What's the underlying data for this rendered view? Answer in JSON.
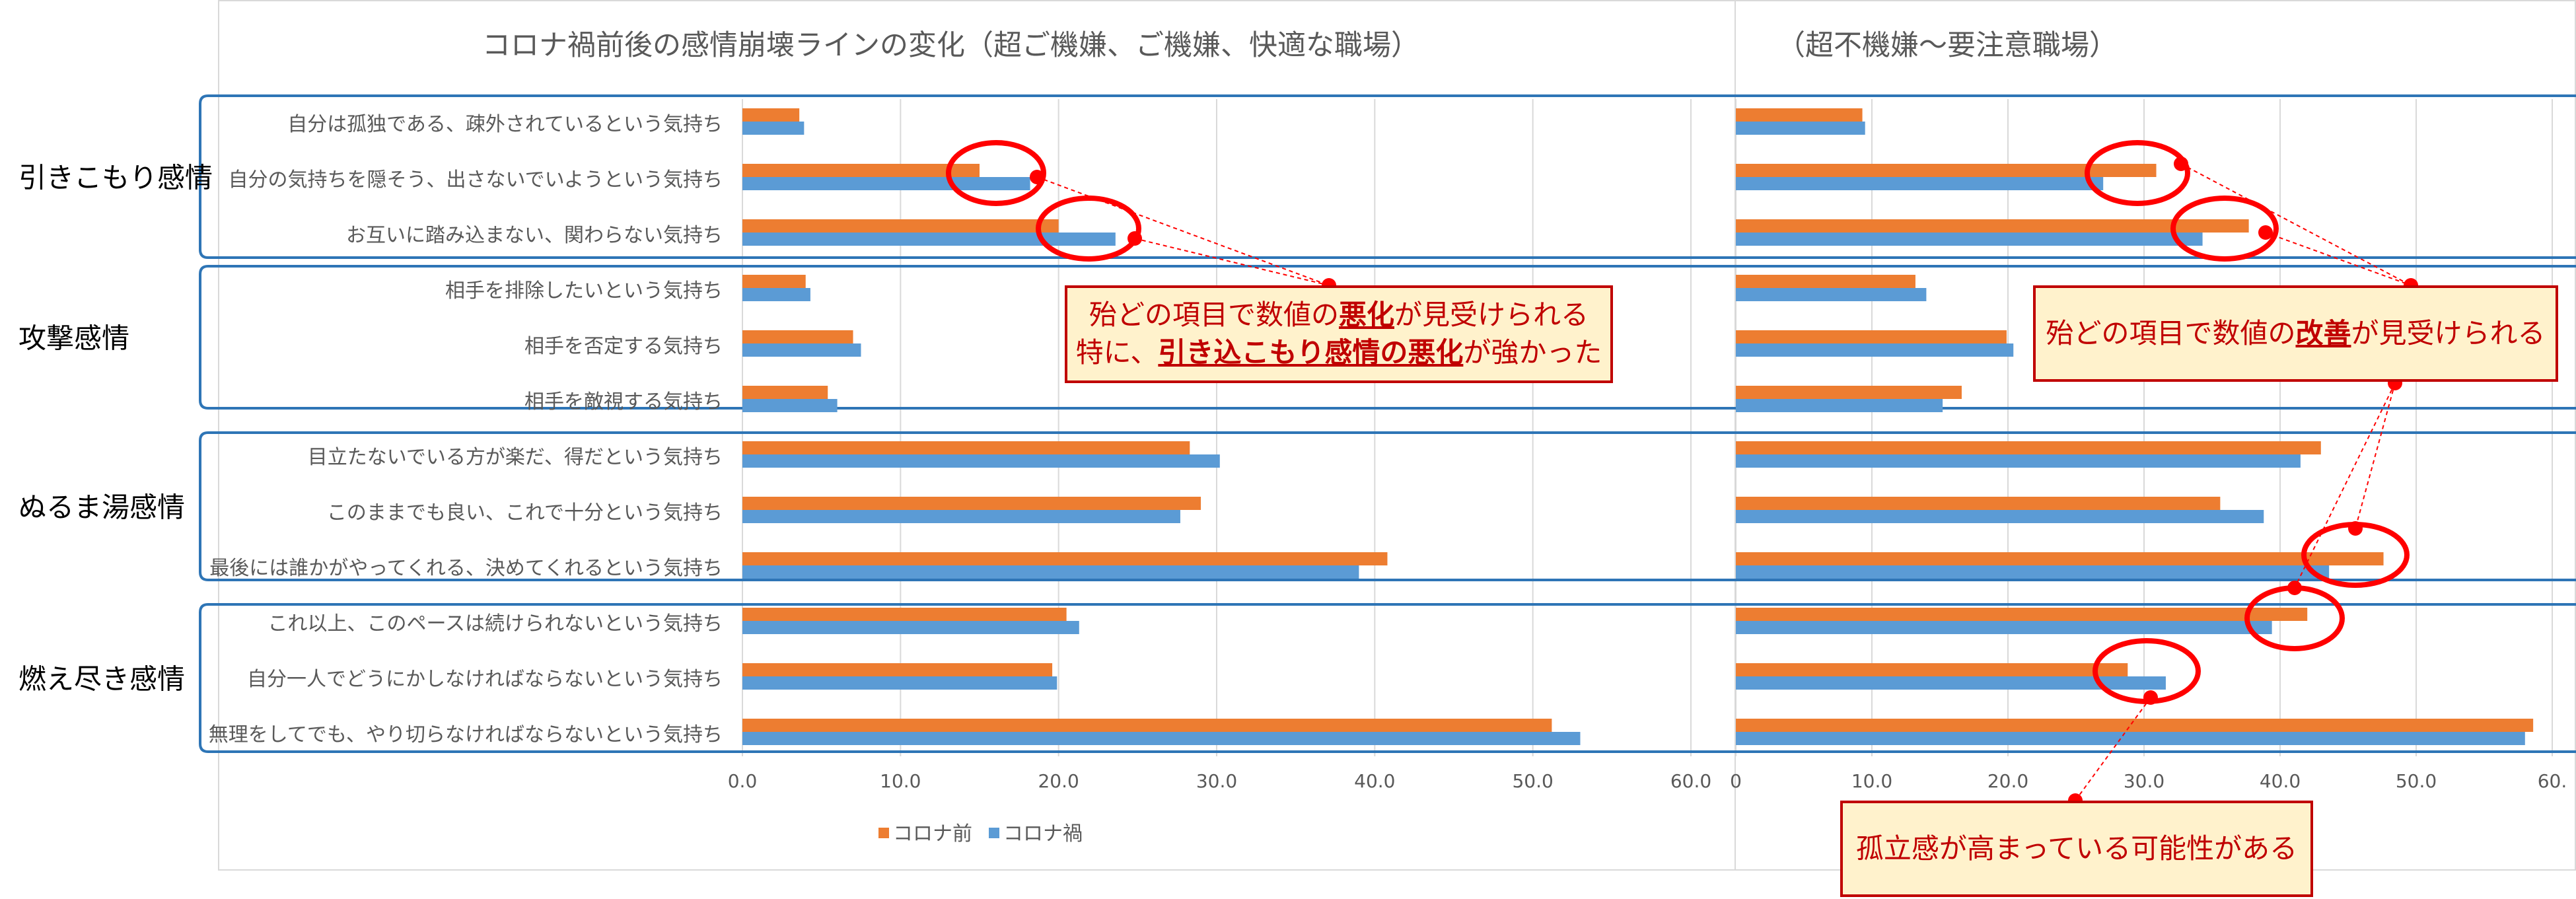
{
  "titles": {
    "left": "コロナ禍前後の感情崩壊ラインの変化（超ご機嫌、ご機嫌、快適な職場）",
    "right": "（超不機嫌～要注意職場）"
  },
  "legend": {
    "before": "コロナ前",
    "after": "コロナ禍"
  },
  "colors": {
    "before": "#ed7d31",
    "after": "#5b9bd5",
    "accent": "#c00000",
    "callout_bg": "#fff2cc",
    "group_frame": "#2e75b6",
    "grid": "#d9d9d9",
    "label": "#595959"
  },
  "groups": [
    {
      "name": "引きこもり感情",
      "rows": [
        0,
        1,
        2
      ]
    },
    {
      "name": "攻撃感情",
      "rows": [
        3,
        4,
        5
      ]
    },
    {
      "name": "ぬるま湯感情",
      "rows": [
        6,
        7,
        8
      ]
    },
    {
      "name": "燃え尽き感情",
      "rows": [
        9,
        10,
        11
      ]
    }
  ],
  "callouts": {
    "left": {
      "pre1": "殆どの項目で数値の",
      "em1": "悪化",
      "post1": "が見受けられる",
      "pre2": "特に、",
      "em2": "引き込こもり感情の悪化",
      "post2": "が強かった"
    },
    "right": {
      "pre1": "殆どの項目で数値の",
      "em1": "改善",
      "post1": "が見受けられる"
    },
    "bottom": {
      "text": "孤立感が高まっている可能性がある"
    }
  },
  "chart_data": [
    {
      "type": "bar",
      "orientation": "horizontal",
      "title": "コロナ禍前後の感情崩壊ラインの変化（超ご機嫌、ご機嫌、快適な職場）",
      "categories": [
        "自分は孤独である、疎外されているという気持ち",
        "自分の気持ちを隠そう、出さないでいようという気持ち",
        "お互いに踏み込まない、関わらない気持ち",
        "相手を排除したいという気持ち",
        "相手を否定する気持ち",
        "相手を敵視する気持ち",
        "目立たないでいる方が楽だ、得だという気持ち",
        "このままでも良い、これで十分という気持ち",
        "最後には誰かがやってくれる、決めてくれるという気持ち",
        "これ以上、このペースは続けられないという気持ち",
        "自分一人でどうにかしなければならないという気持ち",
        "無理をしてでも、やり切らなければならないという気持ち"
      ],
      "series": [
        {
          "name": "コロナ前",
          "values": [
            3.6,
            15.0,
            20.0,
            4.0,
            7.0,
            5.4,
            28.3,
            29.0,
            40.8,
            20.5,
            19.6,
            51.2
          ]
        },
        {
          "name": "コロナ禍",
          "values": [
            3.9,
            18.2,
            23.6,
            4.3,
            7.5,
            6.0,
            30.2,
            27.7,
            39.0,
            21.3,
            19.9,
            53.0
          ]
        }
      ],
      "xlim": [
        0,
        60
      ],
      "ticks": [
        "0.0",
        "10.0",
        "20.0",
        "30.0",
        "40.0",
        "50.0",
        "60.0"
      ],
      "grid": true,
      "legend": "bottom"
    },
    {
      "type": "bar",
      "orientation": "horizontal",
      "title": "（超不機嫌～要注意職場）",
      "series": [
        {
          "name": "コロナ前",
          "values": [
            9.3,
            30.9,
            37.7,
            13.2,
            19.9,
            16.6,
            43.0,
            35.6,
            47.6,
            42.0,
            28.8,
            58.6
          ]
        },
        {
          "name": "コロナ禍",
          "values": [
            9.5,
            27.0,
            34.3,
            14.0,
            20.4,
            15.2,
            41.5,
            38.8,
            43.6,
            39.4,
            31.6,
            58.0
          ]
        }
      ],
      "xlim": [
        0,
        60
      ],
      "ticks": [
        "0",
        "10.0",
        "20.0",
        "30.0",
        "40.0",
        "50.0",
        "60."
      ],
      "grid": true
    }
  ]
}
